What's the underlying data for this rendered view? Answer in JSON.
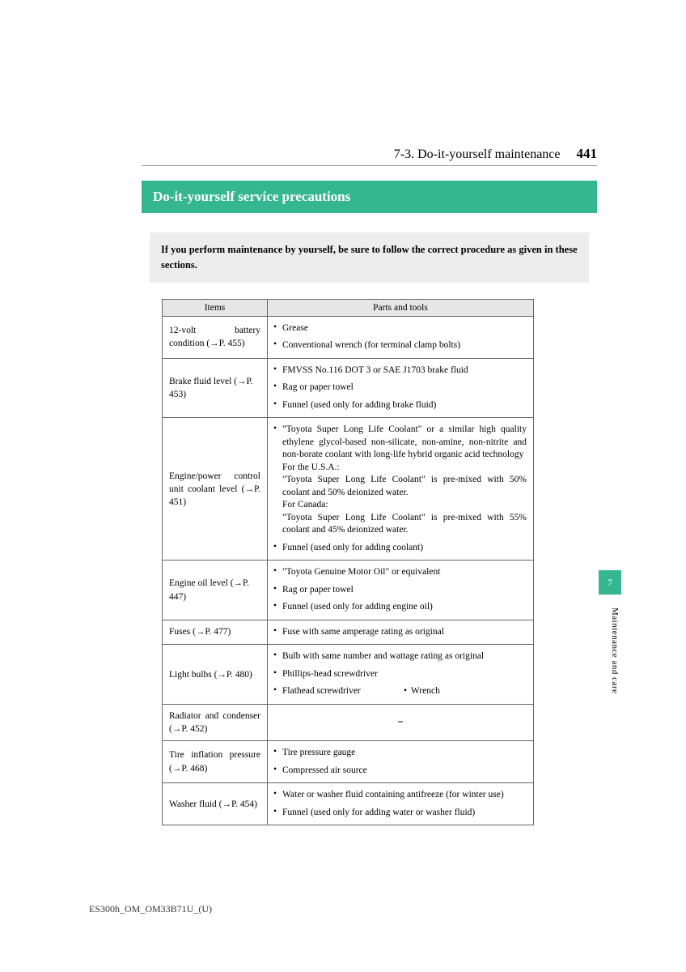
{
  "header": {
    "section": "7-3. Do-it-yourself maintenance",
    "page": "441"
  },
  "title": "Do-it-yourself service precautions",
  "intro": "If you perform maintenance by yourself, be sure to follow the correct procedure as given in these sections.",
  "columns": {
    "items": "Items",
    "tools": "Parts and tools"
  },
  "rows": {
    "r0": {
      "item": "12-volt battery condition (→P. 455)",
      "b0": "Grease",
      "b1": "Conventional wrench (for terminal clamp bolts)"
    },
    "r1": {
      "item": "Brake fluid level (→P. 453)",
      "b0": "FMVSS No.116 DOT 3 or SAE J1703 brake fluid",
      "b1": "Rag or paper towel",
      "b2": "Funnel (used only for adding brake fluid)"
    },
    "r2": {
      "item": "Engine/power control unit coolant level (→P. 451)",
      "b0a": "\"Toyota Super Long Life Coolant\" or a similar high quality ethylene glycol-based non-silicate, non-amine, non-nitrite and non-borate coolant with long-life hybrid organic acid technology",
      "b0b": "For the U.S.A.:",
      "b0c": "\"Toyota Super Long Life Coolant\" is pre-mixed with 50% coolant and 50% deionized water.",
      "b0d": "For Canada:",
      "b0e": "\"Toyota Super Long Life Coolant\" is pre-mixed with 55% coolant and 45% deionized water.",
      "b1": "Funnel (used only for adding coolant)"
    },
    "r3": {
      "item": "Engine oil level (→P. 447)",
      "b0": "\"Toyota Genuine Motor Oil\" or equivalent",
      "b1": "Rag or paper towel",
      "b2": "Funnel (used only for adding engine oil)"
    },
    "r4": {
      "item": "Fuses (→P. 477)",
      "b0": "Fuse with same amperage rating as original"
    },
    "r5": {
      "item": "Light bulbs (→P. 480)",
      "b0": "Bulb with same number and wattage rating as original",
      "b1": "Phillips-head screwdriver",
      "b2a": "Flathead screwdriver",
      "b2b": "Wrench"
    },
    "r6": {
      "item": "Radiator and condenser (→P. 452)",
      "dash": "⎯"
    },
    "r7": {
      "item": "Tire inflation pressure (→P. 468)",
      "b0": "Tire pressure gauge",
      "b1": "Compressed air source"
    },
    "r8": {
      "item": "Washer fluid (→P. 454)",
      "b0": "Water or washer fluid containing antifreeze (for winter use)",
      "b1": "Funnel (used only for adding water or washer fluid)"
    }
  },
  "sidebar": {
    "chapter": "7",
    "label": "Maintenance and care"
  },
  "footer": "ES300h_OM_OM33B71U_(U)",
  "colors": {
    "accent": "#34b78f",
    "grey": "#ededed"
  }
}
